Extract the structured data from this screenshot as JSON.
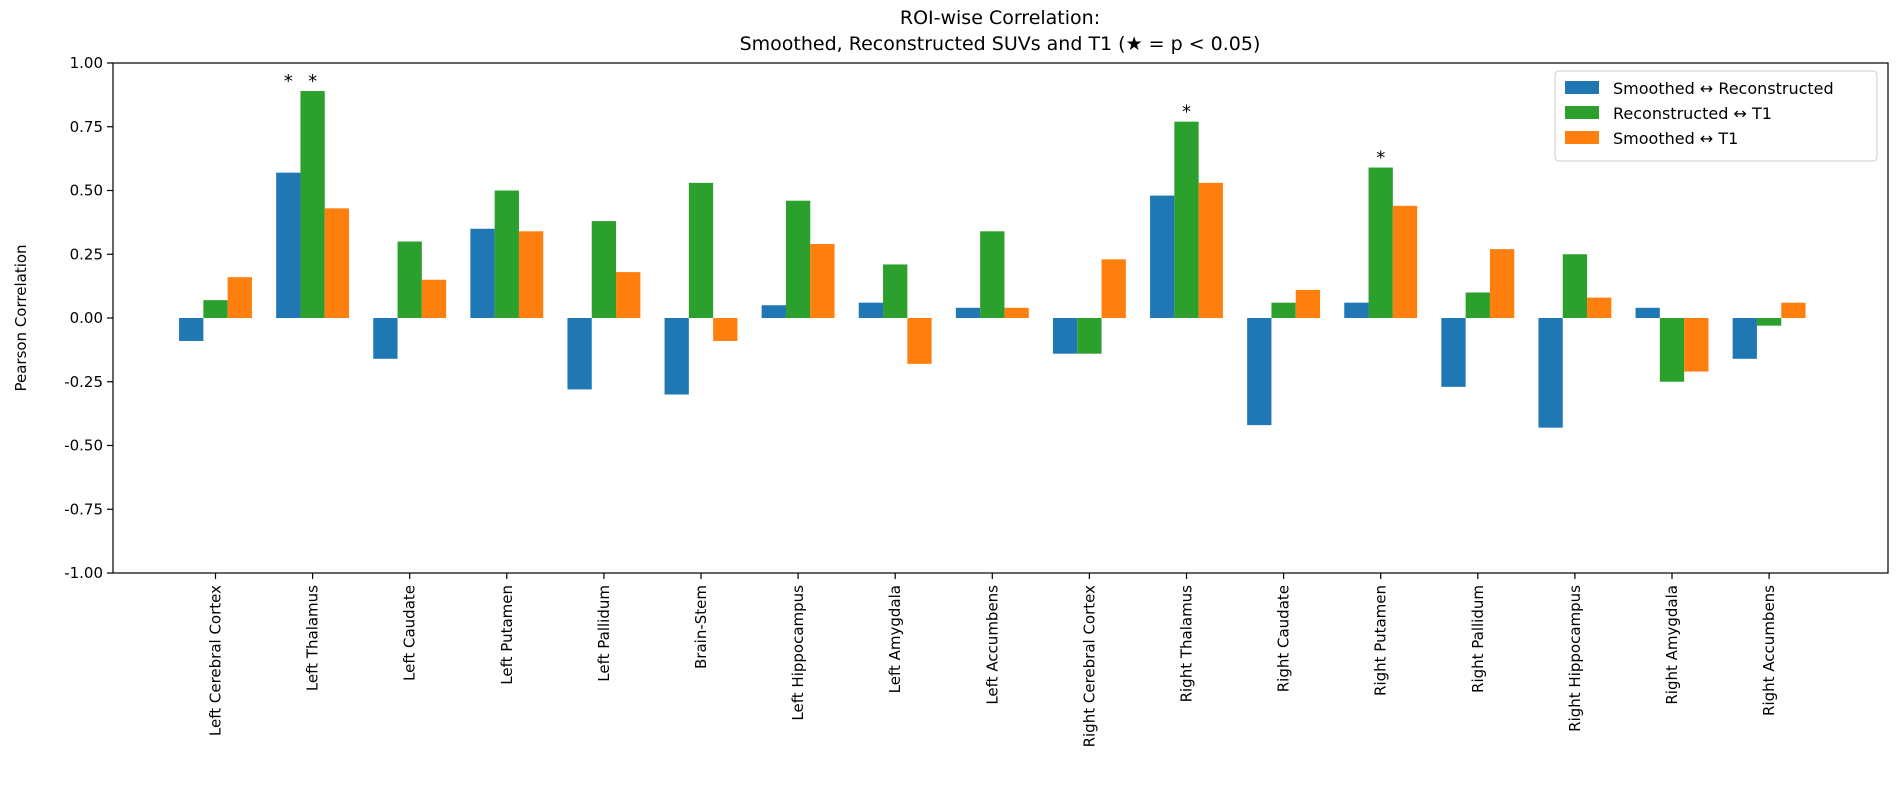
{
  "chart_data": {
    "type": "bar",
    "title_line1": "ROI-wise Correlation:",
    "title_line2": "Smoothed, Reconstructed SUVs and T1 (★ = p < 0.05)",
    "xlabel": "",
    "ylabel": "Pearson Correlation",
    "ylim": [
      -1.0,
      1.0
    ],
    "yticks": [
      "-1.00",
      "-0.75",
      "-0.50",
      "-0.25",
      "0.00",
      "0.25",
      "0.50",
      "0.75",
      "1.00"
    ],
    "ytick_values": [
      -1.0,
      -0.75,
      -0.5,
      -0.25,
      0.0,
      0.25,
      0.5,
      0.75,
      1.0
    ],
    "grid": false,
    "legend_position": "top-right",
    "categories": [
      "Left Cerebral Cortex",
      "Left Thalamus",
      "Left Caudate",
      "Left Putamen",
      "Left Pallidum",
      "Brain-Stem",
      "Left Hippocampus",
      "Left Amygdala",
      "Left Accumbens",
      "Right Cerebral Cortex",
      "Right Thalamus",
      "Right Caudate",
      "Right Putamen",
      "Right Pallidum",
      "Right Hippocampus",
      "Right Amygdala",
      "Right Accumbens"
    ],
    "series": [
      {
        "name": "Smoothed ↔ Reconstructed",
        "color": "#1f77b4",
        "values": [
          -0.09,
          0.57,
          -0.16,
          0.35,
          -0.28,
          -0.3,
          0.05,
          0.06,
          0.04,
          -0.14,
          0.48,
          -0.42,
          0.06,
          -0.27,
          -0.43,
          0.04,
          -0.16
        ]
      },
      {
        "name": "Reconstructed ↔ T1",
        "color": "#2ca02c",
        "values": [
          0.07,
          0.89,
          0.3,
          0.5,
          0.38,
          0.53,
          0.46,
          0.21,
          0.34,
          -0.14,
          0.77,
          0.06,
          0.59,
          0.1,
          0.25,
          -0.25,
          -0.03
        ]
      },
      {
        "name": "Smoothed ↔ T1",
        "color": "#ff7f0e",
        "values": [
          0.16,
          0.43,
          0.15,
          0.34,
          0.18,
          -0.09,
          0.29,
          -0.18,
          0.04,
          0.23,
          0.53,
          0.11,
          0.44,
          0.27,
          0.08,
          -0.21,
          0.06
        ]
      }
    ],
    "annotations": [
      {
        "category_index": 1,
        "series_index": 0,
        "text": "*"
      },
      {
        "category_index": 1,
        "series_index": 1,
        "text": "*"
      },
      {
        "category_index": 10,
        "series_index": 1,
        "text": "*"
      },
      {
        "category_index": 12,
        "series_index": 1,
        "text": "*"
      }
    ]
  }
}
